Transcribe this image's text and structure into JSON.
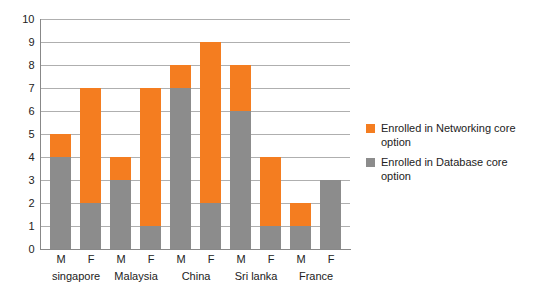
{
  "chart_data": {
    "type": "bar",
    "stacked": true,
    "categories": [
      "M",
      "F",
      "M",
      "F",
      "M",
      "F",
      "M",
      "F",
      "M",
      "F"
    ],
    "category_groups": [
      "singapore",
      "Malaysia",
      "China",
      "Sri lanka",
      "France"
    ],
    "series": [
      {
        "name": "Enrolled in Database core option",
        "color": "#8c8c8c",
        "values": [
          4,
          2,
          3,
          1,
          7,
          2,
          6,
          1,
          1,
          3
        ]
      },
      {
        "name": "Enrolled in Networking core option",
        "color": "#f47d20",
        "values": [
          1,
          5,
          1,
          6,
          1,
          7,
          2,
          3,
          1,
          0
        ]
      }
    ],
    "ylim": [
      0,
      10
    ],
    "yticks": [
      0,
      1,
      2,
      3,
      4,
      5,
      6,
      7,
      8,
      9,
      10
    ],
    "grid": true,
    "legend": "right"
  }
}
